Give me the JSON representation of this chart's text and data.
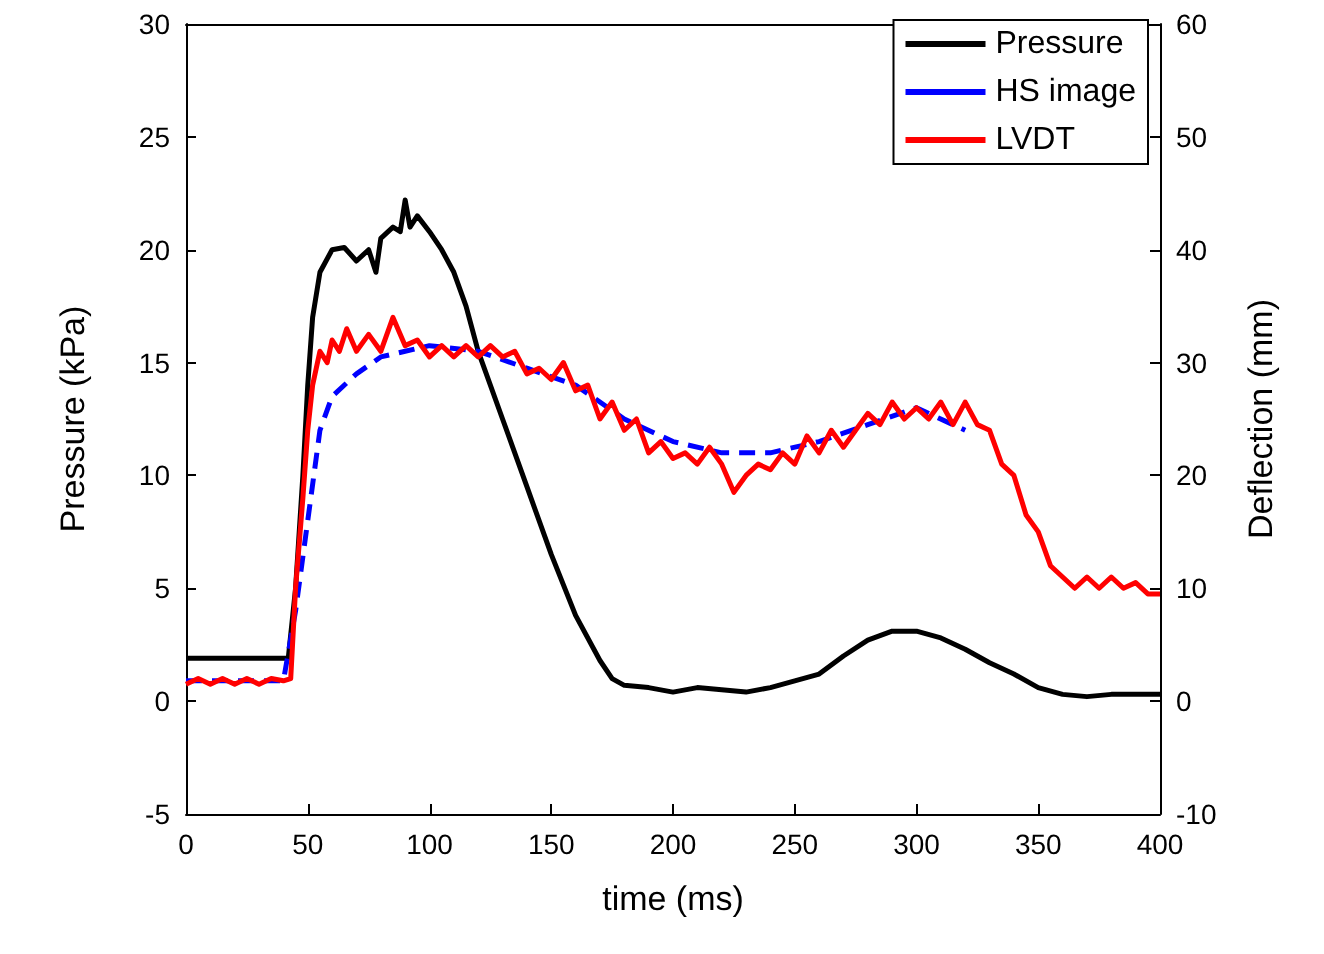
{
  "chart_data": {
    "type": "line",
    "xlabel": "time (ms)",
    "ylabel": "Pressure (kPa)",
    "y2label": "Deflection (mm)",
    "xlim": [
      0,
      400
    ],
    "xticks": [
      0,
      50,
      100,
      150,
      200,
      250,
      300,
      350,
      400
    ],
    "ylim": [
      -5,
      30
    ],
    "yticks": [
      -5,
      0,
      5,
      10,
      15,
      20,
      25,
      30
    ],
    "y2lim": [
      -10,
      60
    ],
    "y2ticks": [
      -10,
      0,
      10,
      20,
      30,
      40,
      50,
      60
    ],
    "grid": false,
    "legend": "top right",
    "marker": "none",
    "series": [
      {
        "name": "Pressure",
        "color": "#000000",
        "line_style": "solid",
        "x": [
          0,
          20,
          42,
          45,
          48,
          50,
          52,
          55,
          60,
          65,
          70,
          75,
          78,
          80,
          85,
          88,
          90,
          92,
          95,
          100,
          105,
          110,
          115,
          120,
          130,
          140,
          150,
          160,
          170,
          175,
          180,
          190,
          200,
          210,
          220,
          230,
          240,
          250,
          260,
          270,
          280,
          290,
          300,
          310,
          320,
          330,
          340,
          350,
          360,
          370,
          380,
          390,
          400
        ],
        "values": [
          1.9,
          1.9,
          1.9,
          5,
          10,
          14,
          17,
          19,
          20,
          20.1,
          19.5,
          20,
          19,
          20.5,
          21,
          20.8,
          22.2,
          21,
          21.5,
          20.8,
          20,
          19,
          17.5,
          15.5,
          12.5,
          9.5,
          6.5,
          3.8,
          1.8,
          1,
          0.7,
          0.6,
          0.4,
          0.6,
          0.5,
          0.4,
          0.6,
          0.9,
          1.2,
          2,
          2.7,
          3.1,
          3.1,
          2.8,
          2.3,
          1.7,
          1.2,
          0.6,
          0.3,
          0.2,
          0.3,
          0.3,
          0.3
        ]
      },
      {
        "name": "HS image",
        "color": "#0000ff",
        "line_style": "dashed",
        "axis": "y2",
        "x": [
          0,
          40,
          45,
          50,
          55,
          60,
          70,
          80,
          90,
          100,
          120,
          140,
          160,
          180,
          200,
          220,
          240,
          260,
          280,
          300,
          320
        ],
        "values": [
          1.8,
          1.8,
          8,
          16,
          24,
          27,
          29,
          30.5,
          31,
          31.5,
          31,
          29.5,
          28,
          25,
          23,
          22,
          22,
          23,
          24.5,
          26,
          24
        ]
      },
      {
        "name": "LVDT",
        "color": "#ff0000",
        "line_style": "solid",
        "axis": "y2",
        "x": [
          0,
          5,
          10,
          15,
          20,
          25,
          30,
          35,
          40,
          43,
          45,
          48,
          50,
          52,
          55,
          58,
          60,
          63,
          66,
          70,
          75,
          80,
          85,
          90,
          95,
          100,
          105,
          110,
          115,
          120,
          125,
          130,
          135,
          140,
          145,
          150,
          155,
          160,
          165,
          170,
          175,
          180,
          185,
          190,
          195,
          200,
          205,
          210,
          215,
          220,
          225,
          230,
          235,
          240,
          245,
          250,
          255,
          260,
          265,
          270,
          275,
          280,
          285,
          290,
          295,
          300,
          305,
          310,
          315,
          320,
          325,
          330,
          335,
          340,
          345,
          350,
          355,
          360,
          365,
          370,
          375,
          380,
          385,
          390,
          395,
          400
        ],
        "values": [
          1.5,
          2,
          1.5,
          2,
          1.5,
          2,
          1.5,
          2,
          1.8,
          2,
          10,
          18,
          24,
          28,
          31,
          30,
          32,
          31,
          33,
          31,
          32.5,
          31,
          34,
          31.5,
          32,
          30.5,
          31.5,
          30.5,
          31.5,
          30.5,
          31.5,
          30.5,
          31,
          29,
          29.5,
          28.5,
          30,
          27.5,
          28,
          25,
          26.5,
          24,
          25,
          22,
          23,
          21.5,
          22,
          21,
          22.5,
          21,
          18.5,
          20,
          21,
          20.5,
          22,
          21,
          23.5,
          22,
          24,
          22.5,
          24,
          25.5,
          24.5,
          26.5,
          25,
          26,
          25,
          26.5,
          24.5,
          26.5,
          24.5,
          24,
          21,
          20,
          16.5,
          15,
          12,
          11,
          10,
          11,
          10,
          11,
          10,
          10.5,
          9.5,
          9.5
        ]
      }
    ]
  }
}
